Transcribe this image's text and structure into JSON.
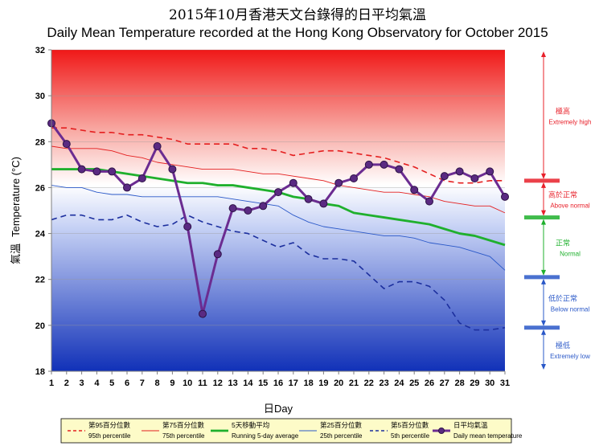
{
  "chart_data": {
    "type": "line",
    "title": "2015年10月香港天文台錄得的日平均氣溫",
    "subtitle": "Daily Mean Temperature recorded at the Hong Kong Observatory for October 2015",
    "xlabel_zh": "日",
    "xlabel_en": "Day",
    "ylabel_zh": "氣溫",
    "ylabel_en": "Temperature (°C)",
    "xlim": [
      1,
      31
    ],
    "ylim": [
      18,
      32
    ],
    "y_ticks": [
      18,
      20,
      22,
      24,
      26,
      28,
      30,
      32
    ],
    "x": [
      1,
      2,
      3,
      4,
      5,
      6,
      7,
      8,
      9,
      10,
      11,
      12,
      13,
      14,
      15,
      16,
      17,
      18,
      19,
      20,
      21,
      22,
      23,
      24,
      25,
      26,
      27,
      28,
      29,
      30,
      31
    ],
    "series": [
      {
        "name_zh": "第95百分位數",
        "name_en": "95th percentile",
        "key": "p95",
        "color": "#e41f1f",
        "style": "dashed",
        "values": [
          28.6,
          28.6,
          28.5,
          28.4,
          28.4,
          28.3,
          28.3,
          28.2,
          28.1,
          27.9,
          27.9,
          27.9,
          27.9,
          27.7,
          27.7,
          27.6,
          27.4,
          27.5,
          27.6,
          27.6,
          27.5,
          27.4,
          27.3,
          27.1,
          26.9,
          26.6,
          26.3,
          26.2,
          26.2,
          26.3,
          26.3
        ]
      },
      {
        "name_zh": "第75百分位數",
        "name_en": "75th percentile",
        "key": "p75",
        "color": "#e41f1f",
        "style": "solid-thin",
        "values": [
          27.8,
          27.7,
          27.7,
          27.7,
          27.6,
          27.4,
          27.3,
          27.1,
          27.0,
          26.9,
          26.8,
          26.8,
          26.8,
          26.7,
          26.6,
          26.6,
          26.5,
          26.4,
          26.3,
          26.1,
          26.0,
          25.9,
          25.8,
          25.8,
          25.7,
          25.6,
          25.4,
          25.3,
          25.2,
          25.2,
          24.9
        ]
      },
      {
        "name_zh": "5天移動平均",
        "name_en": "Running 5-day average",
        "key": "run5",
        "color": "#1fb02d",
        "style": "solid-thick",
        "values": [
          26.8,
          26.8,
          26.8,
          26.8,
          26.7,
          26.6,
          26.5,
          26.4,
          26.3,
          26.2,
          26.2,
          26.1,
          26.1,
          26.0,
          25.9,
          25.8,
          25.6,
          25.5,
          25.3,
          25.2,
          24.9,
          24.8,
          24.7,
          24.6,
          24.5,
          24.4,
          24.2,
          24.0,
          23.9,
          23.7,
          23.5
        ]
      },
      {
        "name_zh": "第25百分位數",
        "name_en": "25th percentile",
        "key": "p25",
        "color": "#2a58c8",
        "style": "solid-thin",
        "values": [
          26.1,
          26.0,
          26.0,
          25.8,
          25.7,
          25.7,
          25.6,
          25.6,
          25.6,
          25.6,
          25.6,
          25.6,
          25.5,
          25.4,
          25.3,
          25.2,
          24.8,
          24.5,
          24.3,
          24.2,
          24.1,
          24.0,
          23.9,
          23.9,
          23.8,
          23.6,
          23.5,
          23.4,
          23.2,
          23.0,
          22.4
        ]
      },
      {
        "name_zh": "第5百分位數",
        "name_en": "5th percentile",
        "key": "p5",
        "color": "#1c2f9e",
        "style": "dashed",
        "values": [
          24.6,
          24.8,
          24.8,
          24.6,
          24.6,
          24.8,
          24.5,
          24.3,
          24.4,
          24.8,
          24.5,
          24.3,
          24.1,
          24.0,
          23.7,
          23.4,
          23.6,
          23.1,
          22.9,
          22.9,
          22.8,
          22.2,
          21.6,
          21.9,
          21.9,
          21.7,
          21.1,
          20.1,
          19.8,
          19.8,
          19.9
        ]
      },
      {
        "name_zh": "日平均氣溫",
        "name_en": "Daily mean temperature",
        "key": "daily",
        "color": "#6b2c91",
        "style": "solid-marker",
        "values": [
          28.8,
          27.9,
          26.8,
          26.7,
          26.7,
          26.0,
          26.4,
          27.8,
          26.8,
          24.3,
          20.5,
          23.1,
          25.1,
          25.0,
          25.2,
          25.8,
          26.2,
          25.5,
          25.3,
          26.2,
          26.4,
          27.0,
          27.0,
          26.8,
          25.9,
          25.4,
          26.5,
          26.7,
          26.4,
          26.7,
          25.6
        ]
      }
    ],
    "bands": [
      {
        "name_zh": "極高",
        "name_en": "Extremely high",
        "color": "#e8202a",
        "range": [
          26.3,
          32
        ]
      },
      {
        "name_zh": "高於正常",
        "name_en": "Above normal",
        "color": "#e8202a",
        "range": [
          24.7,
          26.3
        ]
      },
      {
        "name_zh": "正常",
        "name_en": "Normal",
        "color": "#1fb02d",
        "range": [
          22.1,
          24.7
        ]
      },
      {
        "name_zh": "低於正常",
        "name_en": "Below normal",
        "color": "#2a58c8",
        "range": [
          19.9,
          22.1
        ]
      },
      {
        "name_zh": "極低",
        "name_en": "Extremely low",
        "color": "#2a58c8",
        "range": [
          18,
          19.9
        ]
      }
    ],
    "legend_placement": "bottom",
    "grid": true
  }
}
